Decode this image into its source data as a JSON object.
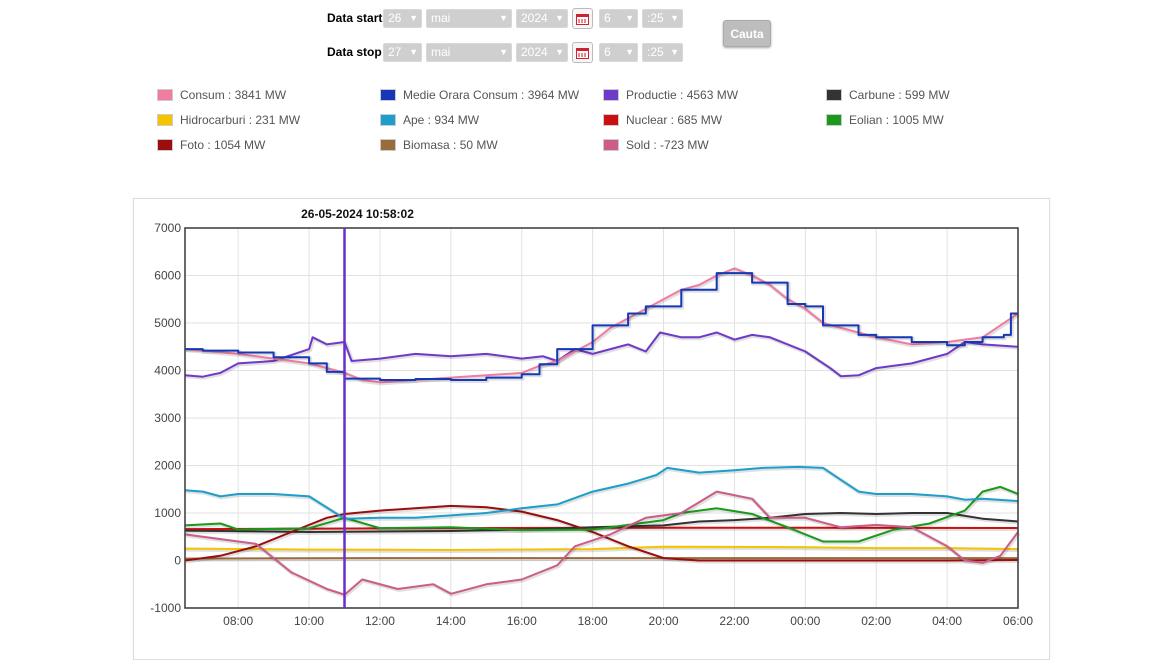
{
  "form": {
    "start": {
      "label": "Data start",
      "day": "26",
      "month": "mai",
      "year": "2024",
      "hour": "6",
      "minute": ":25"
    },
    "stop": {
      "label": "Data stop",
      "day": "27",
      "month": "mai",
      "year": "2024",
      "hour": "6",
      "minute": ":25"
    },
    "search_label": "Cauta",
    "calendar_icon": "calendar-icon"
  },
  "legend": [
    {
      "label": "Consum : 3841 MW",
      "color": "#f07ca0"
    },
    {
      "label": "Medie Orara Consum : 3964 MW",
      "color": "#1538b8"
    },
    {
      "label": "Productie : 4563 MW",
      "color": "#6e3ac8"
    },
    {
      "label": "Carbune : 599 MW",
      "color": "#333333"
    },
    {
      "label": "Hidrocarburi : 231 MW",
      "color": "#f5c400"
    },
    {
      "label": "Ape : 934 MW",
      "color": "#1c9fcc"
    },
    {
      "label": "Nuclear : 685 MW",
      "color": "#cc1010"
    },
    {
      "label": "Eolian : 1005 MW",
      "color": "#1a9a1a"
    },
    {
      "label": "Foto : 1054 MW",
      "color": "#9a0e0e"
    },
    {
      "label": "Biomasa : 50 MW",
      "color": "#9a6a3a"
    },
    {
      "label": "Sold : -723 MW",
      "color": "#cc5c88"
    }
  ],
  "chart_data": {
    "type": "line",
    "cursor_label": "26-05-2024 10:58:02",
    "cursor_x": 11.0,
    "xlim": [
      6.5,
      30.0
    ],
    "ylim": [
      -1000,
      7000
    ],
    "yticks": [
      -1000,
      0,
      1000,
      2000,
      3000,
      4000,
      5000,
      6000,
      7000
    ],
    "xticks": [
      8,
      10,
      12,
      14,
      16,
      18,
      20,
      22,
      24,
      26,
      28,
      30
    ],
    "xtick_labels": [
      "08:00",
      "10:00",
      "12:00",
      "14:00",
      "16:00",
      "18:00",
      "20:00",
      "22:00",
      "00:00",
      "02:00",
      "04:00",
      "06:00"
    ],
    "grid": true,
    "series": [
      {
        "name": "Biomasa",
        "color": "#9a6a3a",
        "points": [
          [
            6.5,
            40
          ],
          [
            12,
            50
          ],
          [
            18,
            50
          ],
          [
            24,
            50
          ],
          [
            30,
            50
          ]
        ]
      },
      {
        "name": "Hidrocarburi",
        "color": "#f5c400",
        "points": [
          [
            6.5,
            250
          ],
          [
            10,
            230
          ],
          [
            14,
            220
          ],
          [
            18,
            240
          ],
          [
            20,
            290
          ],
          [
            24,
            280
          ],
          [
            26,
            260
          ],
          [
            28,
            260
          ],
          [
            30,
            240
          ]
        ]
      },
      {
        "name": "Nuclear",
        "color": "#cc1010",
        "points": [
          [
            6.5,
            660
          ],
          [
            18,
            690
          ],
          [
            24,
            690
          ],
          [
            30,
            685
          ]
        ]
      },
      {
        "name": "Carbune",
        "color": "#333333",
        "points": [
          [
            6.5,
            630
          ],
          [
            10,
            600
          ],
          [
            12,
            610
          ],
          [
            14,
            620
          ],
          [
            16,
            650
          ],
          [
            18,
            700
          ],
          [
            20,
            740
          ],
          [
            21,
            820
          ],
          [
            22,
            850
          ],
          [
            23,
            900
          ],
          [
            24,
            980
          ],
          [
            25,
            1000
          ],
          [
            26,
            980
          ],
          [
            27,
            1000
          ],
          [
            28,
            1000
          ],
          [
            29,
            880
          ],
          [
            30,
            820
          ]
        ]
      },
      {
        "name": "Foto",
        "color": "#9a0e0e",
        "points": [
          [
            6.5,
            0
          ],
          [
            7.5,
            100
          ],
          [
            8.5,
            300
          ],
          [
            9.5,
            600
          ],
          [
            10.5,
            900
          ],
          [
            11,
            980
          ],
          [
            12,
            1050
          ],
          [
            13,
            1100
          ],
          [
            14,
            1150
          ],
          [
            15,
            1120
          ],
          [
            16,
            1030
          ],
          [
            17,
            850
          ],
          [
            18,
            600
          ],
          [
            19,
            300
          ],
          [
            20,
            50
          ],
          [
            21,
            0
          ],
          [
            24,
            0
          ],
          [
            28,
            0
          ],
          [
            30,
            10
          ]
        ]
      },
      {
        "name": "Eolian",
        "color": "#1a9a1a",
        "points": [
          [
            6.5,
            740
          ],
          [
            7.5,
            780
          ],
          [
            8,
            650
          ],
          [
            10,
            680
          ],
          [
            11,
            900
          ],
          [
            12,
            680
          ],
          [
            14,
            700
          ],
          [
            16,
            640
          ],
          [
            18,
            650
          ],
          [
            19,
            750
          ],
          [
            20,
            850
          ],
          [
            20.5,
            1000
          ],
          [
            21.5,
            1100
          ],
          [
            22.5,
            980
          ],
          [
            23.5,
            700
          ],
          [
            24.5,
            400
          ],
          [
            25.5,
            400
          ],
          [
            26.5,
            650
          ],
          [
            27.5,
            780
          ],
          [
            28.5,
            1050
          ],
          [
            29,
            1450
          ],
          [
            29.5,
            1550
          ],
          [
            30,
            1400
          ]
        ]
      },
      {
        "name": "Ape",
        "color": "#1c9fcc",
        "points": [
          [
            6.5,
            1480
          ],
          [
            7,
            1450
          ],
          [
            7.5,
            1350
          ],
          [
            8,
            1400
          ],
          [
            9,
            1400
          ],
          [
            10,
            1350
          ],
          [
            11,
            880
          ],
          [
            12,
            900
          ],
          [
            13,
            900
          ],
          [
            14,
            950
          ],
          [
            15,
            1000
          ],
          [
            16,
            1100
          ],
          [
            17,
            1180
          ],
          [
            18,
            1450
          ],
          [
            19,
            1620
          ],
          [
            19.8,
            1800
          ],
          [
            20.1,
            1950
          ],
          [
            21,
            1850
          ],
          [
            22,
            1900
          ],
          [
            22.8,
            1950
          ],
          [
            23.8,
            1970
          ],
          [
            24.5,
            1950
          ],
          [
            25,
            1700
          ],
          [
            25.5,
            1450
          ],
          [
            26,
            1400
          ],
          [
            27,
            1400
          ],
          [
            28,
            1350
          ],
          [
            28.5,
            1280
          ],
          [
            29,
            1300
          ],
          [
            30,
            1250
          ]
        ]
      },
      {
        "name": "Sold",
        "color": "#cc5c88",
        "points": [
          [
            6.5,
            550
          ],
          [
            7.5,
            450
          ],
          [
            8.5,
            350
          ],
          [
            9.5,
            -250
          ],
          [
            10.5,
            -600
          ],
          [
            11,
            -720
          ],
          [
            11.5,
            -400
          ],
          [
            12.5,
            -600
          ],
          [
            13.5,
            -500
          ],
          [
            14,
            -700
          ],
          [
            15,
            -500
          ],
          [
            16,
            -400
          ],
          [
            17,
            -100
          ],
          [
            17.5,
            300
          ],
          [
            18.5,
            550
          ],
          [
            19.5,
            900
          ],
          [
            20.5,
            1000
          ],
          [
            21.5,
            1450
          ],
          [
            22.5,
            1300
          ],
          [
            23,
            900
          ],
          [
            24,
            900
          ],
          [
            25,
            700
          ],
          [
            26,
            750
          ],
          [
            27,
            700
          ],
          [
            28,
            300
          ],
          [
            28.5,
            0
          ],
          [
            29,
            -50
          ],
          [
            29.5,
            100
          ],
          [
            30,
            600
          ]
        ]
      },
      {
        "name": "Productie",
        "color": "#6e3ac8",
        "points": [
          [
            6.5,
            3900
          ],
          [
            7,
            3870
          ],
          [
            7.5,
            3950
          ],
          [
            8,
            4150
          ],
          [
            9,
            4200
          ],
          [
            10,
            4450
          ],
          [
            10.1,
            4700
          ],
          [
            10.5,
            4550
          ],
          [
            11,
            4600
          ],
          [
            11.2,
            4200
          ],
          [
            12,
            4250
          ],
          [
            13,
            4350
          ],
          [
            14,
            4300
          ],
          [
            15,
            4350
          ],
          [
            16,
            4250
          ],
          [
            16.6,
            4300
          ],
          [
            17,
            4200
          ],
          [
            17.5,
            4450
          ],
          [
            18,
            4350
          ],
          [
            19,
            4550
          ],
          [
            19.5,
            4400
          ],
          [
            19.9,
            4800
          ],
          [
            20.5,
            4700
          ],
          [
            21,
            4700
          ],
          [
            21.5,
            4800
          ],
          [
            22,
            4650
          ],
          [
            22.5,
            4750
          ],
          [
            23,
            4700
          ],
          [
            24,
            4400
          ],
          [
            24.7,
            4050
          ],
          [
            25,
            3880
          ],
          [
            25.5,
            3900
          ],
          [
            26,
            4050
          ],
          [
            27,
            4150
          ],
          [
            28,
            4350
          ],
          [
            28.5,
            4600
          ],
          [
            29,
            4550
          ],
          [
            30,
            4500
          ]
        ]
      },
      {
        "name": "Consum",
        "color": "#f07ca0",
        "points": [
          [
            6.5,
            4450
          ],
          [
            7,
            4420
          ],
          [
            8,
            4350
          ],
          [
            9,
            4250
          ],
          [
            10,
            4150
          ],
          [
            11,
            3950
          ],
          [
            11.5,
            3800
          ],
          [
            12,
            3750
          ],
          [
            13,
            3800
          ],
          [
            14,
            3850
          ],
          [
            15,
            3900
          ],
          [
            16,
            3950
          ],
          [
            16.5,
            4100
          ],
          [
            17,
            4200
          ],
          [
            18,
            4600
          ],
          [
            18.5,
            4900
          ],
          [
            19,
            5100
          ],
          [
            20,
            5500
          ],
          [
            20.5,
            5700
          ],
          [
            21,
            5800
          ],
          [
            21.5,
            6000
          ],
          [
            22,
            6150
          ],
          [
            22.5,
            6000
          ],
          [
            23,
            5800
          ],
          [
            23.5,
            5500
          ],
          [
            24,
            5300
          ],
          [
            24.5,
            5000
          ],
          [
            25,
            4900
          ],
          [
            26,
            4700
          ],
          [
            27,
            4550
          ],
          [
            28,
            4600
          ],
          [
            28.5,
            4650
          ],
          [
            29,
            4700
          ],
          [
            30,
            5200
          ]
        ]
      },
      {
        "name": "Medie Orara Consum",
        "color": "#1538b8",
        "step": true,
        "points": [
          [
            6.5,
            4450
          ],
          [
            7,
            4420
          ],
          [
            8,
            4380
          ],
          [
            9,
            4280
          ],
          [
            10,
            4150
          ],
          [
            10.5,
            3970
          ],
          [
            11,
            3830
          ],
          [
            12,
            3800
          ],
          [
            13,
            3820
          ],
          [
            14,
            3800
          ],
          [
            15,
            3850
          ],
          [
            16,
            3920
          ],
          [
            16.5,
            4130
          ],
          [
            17,
            4450
          ],
          [
            18,
            4950
          ],
          [
            19,
            5200
          ],
          [
            19.5,
            5350
          ],
          [
            20.5,
            5700
          ],
          [
            21,
            5700
          ],
          [
            21.5,
            6050
          ],
          [
            22.5,
            5850
          ],
          [
            23.5,
            5400
          ],
          [
            24,
            5350
          ],
          [
            24.5,
            4950
          ],
          [
            25.5,
            4750
          ],
          [
            26,
            4700
          ],
          [
            27,
            4600
          ],
          [
            28,
            4530
          ],
          [
            28.5,
            4600
          ],
          [
            29,
            4700
          ],
          [
            29.6,
            4750
          ],
          [
            29.8,
            5200
          ],
          [
            30,
            5200
          ]
        ]
      }
    ]
  }
}
